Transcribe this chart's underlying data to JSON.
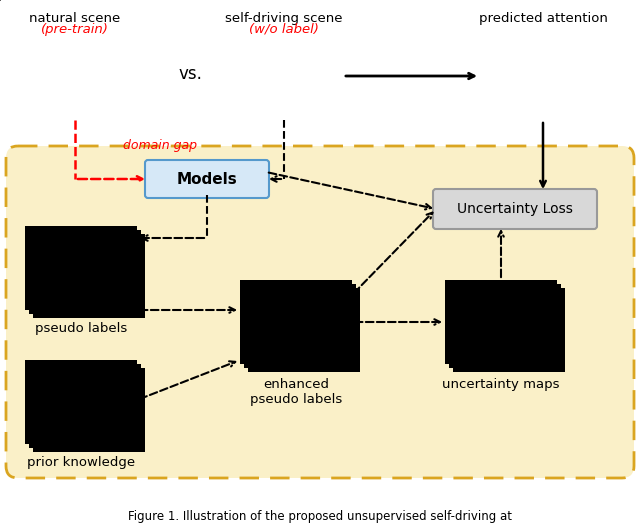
{
  "bg_color": "#FFFFFF",
  "box_bg": "#FAF0C8",
  "box_border": "#DAA520",
  "models_box_color": "#D6E8F7",
  "uncertainty_box_color": "#D8D8D8",
  "text_black": "#000000",
  "text_red": "#FF0000",
  "caption": "Figure 1. Illustration of the proposed unsupervised self-driving at",
  "labels": {
    "natural_scene": "natural scene",
    "pre_train": "(pre-train)",
    "self_driving": "self-driving scene",
    "wo_label": "(w/o label)",
    "predicted_attention": "predicted attention",
    "vs": "vs.",
    "domain_gap": "domain gap",
    "models": "Models",
    "uncertainty_loss": "Uncertainty Loss",
    "pseudo_labels": "pseudo labels",
    "prior_knowledge": "prior knowledge",
    "enhanced_pseudo": "enhanced\npseudo labels",
    "uncertainty_maps": "uncertainty maps"
  }
}
